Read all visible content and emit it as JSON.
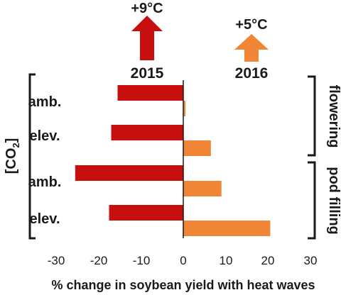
{
  "colors": {
    "year_2015": "#c80f0f",
    "year_2016": "#ef8535",
    "text": "#1a1a1a"
  },
  "legend": [
    {
      "temp": "+9°C",
      "year": "2015",
      "color": "#c80f0f"
    },
    {
      "temp": "+5°C",
      "year": "2016",
      "color": "#ef8535"
    }
  ],
  "left_bracket_label": {
    "prefix": "[CO",
    "sub": "2",
    "suffix": "]"
  },
  "right_groups": [
    "flowering",
    "pod filling"
  ],
  "chart_data": {
    "type": "bar",
    "orientation": "horizontal",
    "categories": [
      "amb.",
      "elev.",
      "amb.",
      "elev."
    ],
    "stages": [
      "flowering",
      "flowering",
      "pod filling",
      "pod filling"
    ],
    "series": [
      {
        "name": "2015",
        "values": [
          -15.5,
          -17,
          -25.5,
          -17.5
        ]
      },
      {
        "name": "2016",
        "values": [
          0.5,
          6.5,
          9,
          20.5
        ]
      }
    ],
    "xlabel": "% change in soybean yield with heat waves",
    "xlim": [
      -30,
      30
    ],
    "xticks": [
      -30,
      -20,
      -10,
      0,
      10,
      20,
      30
    ],
    "grid": false
  }
}
